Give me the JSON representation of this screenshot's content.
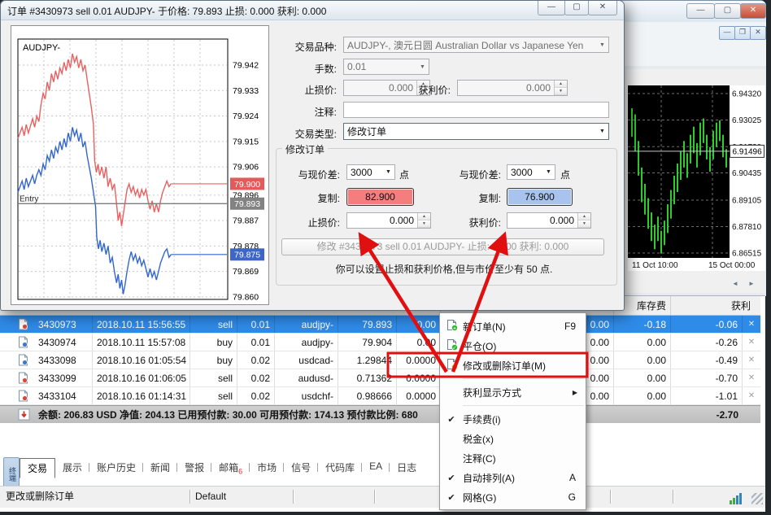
{
  "main_window": {
    "controls": {
      "minimize": "—",
      "maximize": "▢",
      "close": "✕"
    },
    "mdi_controls": {
      "minimize": "—",
      "restore": "❐",
      "close": "✕"
    }
  },
  "dialog": {
    "title": "订单 #3430973 sell 0.01 AUDJPY- 于价格: 79.893 止损: 0.000 获利: 0.000",
    "chart": {
      "symbol": "AUDJPY-",
      "entry_label": "Entry",
      "ask_badge": "79.900",
      "entry_badge": "79.893",
      "bid_badge": "79.875"
    },
    "form": {
      "symbol_label": "交易品种:",
      "symbol_value": "AUDJPY-, 澳元日圆 Australian Dollar vs Japanese Yen",
      "volume_label": "手数:",
      "volume_value": "0.01",
      "sl_label": "止损价:",
      "sl_value": "0.000",
      "tp_label": "获利价:",
      "tp_value": "0.000",
      "comment_label": "注释:",
      "comment_value": "",
      "type_label": "交易类型:",
      "type_value": "修改订单"
    },
    "modify": {
      "group_title": "修改订单",
      "diff_label": "与现价差:",
      "diff_value": "3000",
      "points_label": "点",
      "copy_label": "复制:",
      "copy_sell_value": "82.900",
      "copy_buy_value": "76.900",
      "sl_label": "止损价:",
      "sl_value": "0.000",
      "tp_label": "获利价:",
      "tp_value": "0.000",
      "button_label": "修改 #3430973 sell 0.01 AUDJPY- 止损: 0.000 获利: 0.000",
      "note": "你可以设置止损和获利价格,但与市价至少有 50 点."
    },
    "colors": {
      "copy_sell_bg": "#f47e7e",
      "copy_buy_bg": "#a7c3ee"
    }
  },
  "terminal": {
    "columns": {
      "swap": "库存费",
      "profit": "获利"
    },
    "orders": [
      {
        "id": "3430973",
        "time": "2018.10.11 15:56:55",
        "type": "sell",
        "lots": "0.01",
        "symbol": "audjpy-",
        "price": "79.893",
        "sl": "0.00",
        "commission": "0.00",
        "swap": "-0.18",
        "profit": "-0.06",
        "selected": true
      },
      {
        "id": "3430974",
        "time": "2018.10.11 15:57:08",
        "type": "buy",
        "lots": "0.01",
        "symbol": "audjpy-",
        "price": "79.904",
        "sl": "0.00",
        "commission": "0.00",
        "swap": "0.00",
        "profit": "-0.26",
        "selected": false
      },
      {
        "id": "3433098",
        "time": "2018.10.16 01:05:54",
        "type": "buy",
        "lots": "0.02",
        "symbol": "usdcad-",
        "price": "1.29844",
        "sl": "0.0000",
        "commission": "0.00",
        "swap": "0.00",
        "profit": "-0.49",
        "selected": false
      },
      {
        "id": "3433099",
        "time": "2018.10.16 01:06:05",
        "type": "sell",
        "lots": "0.02",
        "symbol": "audusd-",
        "price": "0.71362",
        "sl": "0.0000",
        "commission": "0.00",
        "swap": "0.00",
        "profit": "-0.70",
        "selected": false
      },
      {
        "id": "3433104",
        "time": "2018.10.16 01:14:31",
        "type": "sell",
        "lots": "0.02",
        "symbol": "usdchf-",
        "price": "0.98666",
        "sl": "0.0000",
        "commission": "0.00",
        "swap": "0.00",
        "profit": "-1.01",
        "selected": false
      }
    ],
    "summary": "余额: 206.83 USD  净值: 204.13  已用预付款: 30.00  可用预付款: 174.13  预付款比例: 680",
    "total_profit": "-2.70",
    "tabs": [
      "交易",
      "展示",
      "账户历史",
      "新闻",
      "警报",
      "邮箱",
      "市场",
      "信号",
      "代码库",
      "EA",
      "日志"
    ],
    "active_tab": "交易",
    "mailbox_badge": "6",
    "vertical_tab": "终端",
    "status_left": "更改或删除订单",
    "status_profile": "Default"
  },
  "context_menu": {
    "items": [
      {
        "label": "新订单(N)",
        "shortcut": "F9",
        "icon": "new-order-icon"
      },
      {
        "label": "平仓(O)",
        "icon": "close-position-icon"
      },
      {
        "label": "修改或删除订单(M)",
        "icon": "modify-order-icon",
        "boxed": true
      },
      {
        "separator": true
      },
      {
        "label": "获利显示方式",
        "submenu": true
      },
      {
        "separator": true
      },
      {
        "label": "手续费(i)",
        "checked": true
      },
      {
        "label": "税金(x)"
      },
      {
        "label": "注释(C)"
      },
      {
        "label": "自动排列(A)",
        "shortcut": "A",
        "checked": true
      },
      {
        "label": "网格(G)",
        "shortcut": "G",
        "checked": true
      }
    ],
    "highlight_color": "#e01010"
  },
  "chart_data": [
    {
      "type": "line",
      "title": "AUDJPY- tick chart (dialog)",
      "ylabels": [
        79.942,
        79.933,
        79.924,
        79.915,
        79.906,
        79.896,
        79.887,
        79.878,
        79.869,
        79.86
      ],
      "badges": {
        "ask": 79.9,
        "entry": 79.893,
        "bid": 79.875
      },
      "flat_from_pct": 73,
      "series": [
        {
          "name": "ask",
          "color": "#e86060",
          "points": [
            [
              0,
              79.916
            ],
            [
              2,
              79.92
            ],
            [
              3,
              79.917
            ],
            [
              4,
              79.921
            ],
            [
              5,
              79.918
            ],
            [
              7,
              79.923
            ],
            [
              8,
              79.92
            ],
            [
              9,
              79.924
            ],
            [
              10,
              79.922
            ],
            [
              11,
              79.928
            ],
            [
              12,
              79.932
            ],
            [
              13,
              79.93
            ],
            [
              14,
              79.936
            ],
            [
              15,
              79.933
            ],
            [
              16,
              79.939
            ],
            [
              17,
              79.936
            ],
            [
              18,
              79.94
            ],
            [
              19,
              79.937
            ],
            [
              20,
              79.941
            ],
            [
              21,
              79.939
            ],
            [
              22,
              79.943
            ],
            [
              23,
              79.94
            ],
            [
              24,
              79.944
            ],
            [
              25,
              79.941
            ],
            [
              26,
              79.946
            ],
            [
              27,
              79.943
            ],
            [
              28,
              79.945
            ],
            [
              29,
              79.941
            ],
            [
              30,
              79.944
            ],
            [
              31,
              79.94
            ],
            [
              32,
              79.942
            ],
            [
              33,
              79.937
            ],
            [
              34,
              79.932
            ],
            [
              35,
              79.927
            ],
            [
              36,
              79.921
            ],
            [
              36.6,
              79.908
            ],
            [
              37.4,
              79.904
            ],
            [
              38.2,
              79.907
            ],
            [
              39,
              79.903
            ],
            [
              40,
              79.906
            ],
            [
              41,
              79.902
            ],
            [
              42,
              79.906
            ],
            [
              43,
              79.899
            ],
            [
              44,
              79.902
            ],
            [
              45,
              79.898
            ],
            [
              46,
              79.9
            ],
            [
              47,
              79.893
            ],
            [
              47.8,
              79.887
            ],
            [
              48.6,
              79.89
            ],
            [
              49.4,
              79.885
            ],
            [
              50.2,
              79.889
            ],
            [
              51,
              79.893
            ],
            [
              52,
              79.898
            ],
            [
              53,
              79.9
            ],
            [
              54,
              79.897
            ],
            [
              55,
              79.899
            ],
            [
              56,
              79.896
            ],
            [
              57,
              79.898
            ],
            [
              58,
              79.895
            ],
            [
              59,
              79.898
            ],
            [
              60,
              79.896
            ],
            [
              61,
              79.898
            ],
            [
              62,
              79.894
            ],
            [
              63,
              79.891
            ],
            [
              64,
              79.894
            ],
            [
              65,
              79.89
            ],
            [
              66,
              79.893
            ],
            [
              67,
              79.89
            ],
            [
              68,
              79.894
            ],
            [
              69,
              79.897
            ],
            [
              70,
              79.899
            ],
            [
              71,
              79.901
            ],
            [
              72,
              79.899
            ],
            [
              73,
              79.9
            ]
          ]
        },
        {
          "name": "bid",
          "color": "#3366cc",
          "points": [
            [
              0,
              79.897
            ],
            [
              2,
              79.901
            ],
            [
              3,
              79.898
            ],
            [
              4,
              79.902
            ],
            [
              5,
              79.899
            ],
            [
              7,
              79.903
            ],
            [
              8,
              79.9
            ],
            [
              9,
              79.903
            ],
            [
              10,
              79.905
            ],
            [
              11,
              79.903
            ],
            [
              12,
              79.907
            ],
            [
              13,
              79.905
            ],
            [
              14,
              79.91
            ],
            [
              15,
              79.908
            ],
            [
              16,
              79.912
            ],
            [
              17,
              79.909
            ],
            [
              18,
              79.913
            ],
            [
              19,
              79.911
            ],
            [
              20,
              79.915
            ],
            [
              21,
              79.912
            ],
            [
              22,
              79.916
            ],
            [
              23,
              79.913
            ],
            [
              24,
              79.918
            ],
            [
              25,
              79.915
            ],
            [
              26,
              79.92
            ],
            [
              27,
              79.917
            ],
            [
              28,
              79.919
            ],
            [
              29,
              79.915
            ],
            [
              30,
              79.918
            ],
            [
              31,
              79.913
            ],
            [
              32,
              79.915
            ],
            [
              33,
              79.91
            ],
            [
              34,
              79.906
            ],
            [
              35,
              79.902
            ],
            [
              36,
              79.897
            ],
            [
              37,
              79.892
            ],
            [
              37.6,
              79.881
            ],
            [
              38.4,
              79.877
            ],
            [
              39.2,
              79.88
            ],
            [
              40,
              79.876
            ],
            [
              41,
              79.879
            ],
            [
              42,
              79.875
            ],
            [
              43,
              79.878
            ],
            [
              44,
              79.872
            ],
            [
              45,
              79.874
            ],
            [
              46,
              79.869
            ],
            [
              47,
              79.865
            ],
            [
              47.8,
              79.868
            ],
            [
              48.6,
              79.863
            ],
            [
              49.4,
              79.866
            ],
            [
              50.2,
              79.861
            ],
            [
              51,
              79.864
            ],
            [
              52,
              79.869
            ],
            [
              53,
              79.873
            ],
            [
              54,
              79.876
            ],
            [
              55,
              79.873
            ],
            [
              56,
              79.875
            ],
            [
              57,
              79.872
            ],
            [
              58,
              79.874
            ],
            [
              59,
              79.871
            ],
            [
              60,
              79.873
            ],
            [
              61,
              79.87
            ],
            [
              62,
              79.867
            ],
            [
              63,
              79.87
            ],
            [
              64,
              79.867
            ],
            [
              65,
              79.869
            ],
            [
              66,
              79.866
            ],
            [
              67,
              79.869
            ],
            [
              68,
              79.872
            ],
            [
              69,
              79.874
            ],
            [
              70,
              79.876
            ],
            [
              71,
              79.877
            ],
            [
              72,
              79.874
            ],
            [
              73,
              79.875
            ]
          ]
        }
      ]
    },
    {
      "type": "bar",
      "title": "background chart",
      "bar_color": "#2ecc2e",
      "price_labels": [
        "6.94320",
        "6.93025",
        "6.91720",
        "6.90435",
        "6.89105",
        "6.87810",
        "6.86515"
      ],
      "price_values": [
        6.9432,
        6.93025,
        6.9172,
        6.90435,
        6.89105,
        6.8781,
        6.86515
      ],
      "current_price": 6.91496,
      "current_label": "6.91496",
      "time_labels": [
        "11 Oct 10:00",
        "15 Oct 00:00"
      ],
      "bars": [
        [
          6.922,
          6.936
        ],
        [
          6.915,
          6.933
        ],
        [
          6.903,
          6.92
        ],
        [
          6.89,
          6.907
        ],
        [
          6.884,
          6.899
        ],
        [
          6.877,
          6.892
        ],
        [
          6.871,
          6.885
        ],
        [
          6.867,
          6.879
        ],
        [
          6.871,
          6.883
        ],
        [
          6.865,
          6.876
        ],
        [
          6.869,
          6.881
        ],
        [
          6.875,
          6.889
        ],
        [
          6.882,
          6.896
        ],
        [
          6.889,
          6.903
        ],
        [
          6.895,
          6.909
        ],
        [
          6.901,
          6.915
        ],
        [
          6.907,
          6.92
        ],
        [
          6.902,
          6.914
        ],
        [
          6.909,
          6.923
        ],
        [
          6.914,
          6.927
        ],
        [
          6.907,
          6.919
        ],
        [
          6.913,
          6.929
        ],
        [
          6.919,
          6.931
        ],
        [
          6.911,
          6.923
        ],
        [
          6.905,
          6.917
        ],
        [
          6.911,
          6.925
        ],
        [
          6.917,
          6.929
        ],
        [
          6.92,
          6.93
        ],
        [
          6.912,
          6.923
        ],
        [
          6.907,
          6.916
        ]
      ]
    }
  ]
}
